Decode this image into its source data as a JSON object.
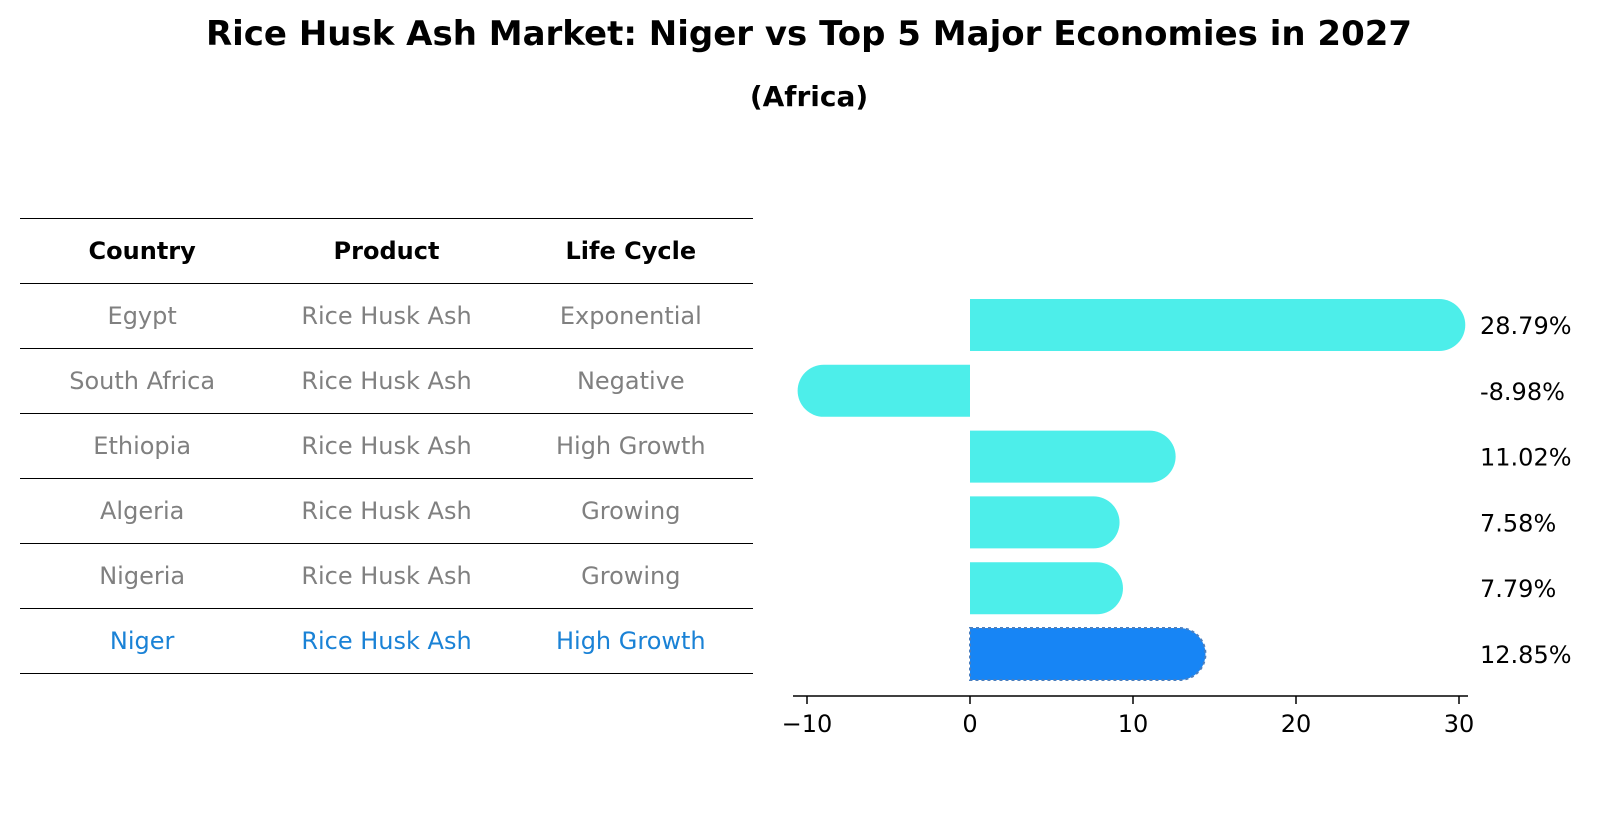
{
  "title": "Rice Husk Ash Market: Niger vs Top 5 Major Economies in 2027",
  "subtitle": "(Africa)",
  "table": {
    "headers": [
      "Country",
      "Product",
      "Life Cycle"
    ],
    "rows": [
      [
        "Egypt",
        "Rice Husk Ash",
        "Exponential"
      ],
      [
        "South Africa",
        "Rice Husk Ash",
        "Negative"
      ],
      [
        "Ethiopia",
        "Rice Husk Ash",
        "High Growth"
      ],
      [
        "Algeria",
        "Rice Husk Ash",
        "Growing"
      ],
      [
        "Nigeria",
        "Rice Husk Ash",
        "Growing"
      ],
      [
        "Niger",
        "Rice Husk Ash",
        "High Growth"
      ]
    ],
    "highlight_row": 5
  },
  "chart_data": {
    "type": "bar",
    "orientation": "horizontal",
    "categories": [
      "Egypt",
      "South Africa",
      "Ethiopia",
      "Algeria",
      "Nigeria",
      "Niger"
    ],
    "values": [
      28.79,
      -8.98,
      11.02,
      7.58,
      7.79,
      12.85
    ],
    "value_labels": [
      "28.79%",
      "-8.98%",
      "11.02%",
      "7.58%",
      "7.79%",
      "12.85%"
    ],
    "xlim": [
      -10.5,
      30.5
    ],
    "xticks": [
      -10,
      0,
      10,
      20,
      30
    ],
    "xtick_labels": [
      "−10",
      "0",
      "10",
      "20",
      "30"
    ],
    "colors": {
      "default": "#4deeea",
      "highlight": "#1785f5"
    },
    "highlight_index": 5,
    "grid": false
  }
}
